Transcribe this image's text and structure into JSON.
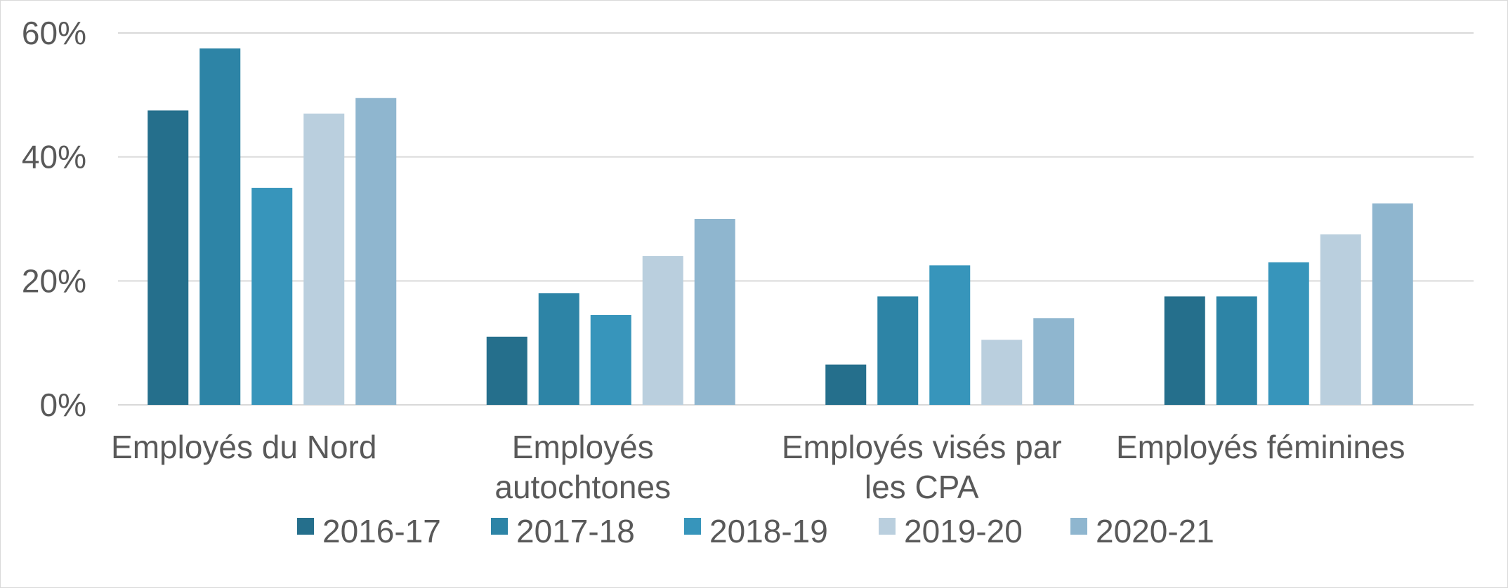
{
  "chart_data": {
    "type": "bar",
    "categories": [
      [
        "Employés du Nord"
      ],
      [
        "Employés",
        "autochtones"
      ],
      [
        "Employés visés par",
        "les CPA"
      ],
      [
        "Employés féminines"
      ]
    ],
    "series": [
      {
        "name": "2016-17",
        "color": "#256f8c",
        "values": [
          47.5,
          11,
          6.5,
          17.5
        ]
      },
      {
        "name": "2017-18",
        "color": "#2d84a6",
        "values": [
          57.5,
          18,
          17.5,
          17.5
        ]
      },
      {
        "name": "2018-19",
        "color": "#3795bb",
        "values": [
          35,
          14.5,
          22.5,
          23
        ]
      },
      {
        "name": "2019-20",
        "color": "#bacfde",
        "values": [
          47,
          24,
          10.5,
          27.5
        ]
      },
      {
        "name": "2020-21",
        "color": "#8fb6cf",
        "values": [
          49.5,
          30,
          14,
          32.5
        ]
      }
    ],
    "ylim": [
      0,
      60
    ],
    "yticks": [
      0,
      20,
      40,
      60
    ],
    "ytick_labels": [
      "0%",
      "20%",
      "40%",
      "60%"
    ],
    "grid": true,
    "legend": "bottom",
    "title": "",
    "xlabel": "",
    "ylabel": ""
  }
}
